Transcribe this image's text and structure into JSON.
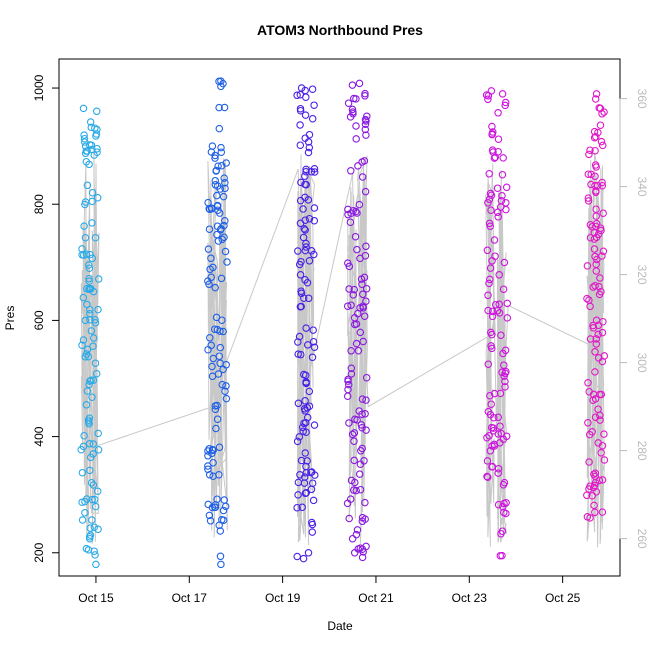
{
  "chart_data": {
    "type": "scatter",
    "title": "ATOM3 Northbound Pres",
    "xlabel": "Date",
    "ylabel": "Pres",
    "x_ticks": [
      "Oct 15",
      "Oct 17",
      "Oct 19",
      "Oct 21",
      "Oct 23",
      "Oct 25"
    ],
    "y_ticks": [
      "200",
      "400",
      "600",
      "800",
      "1000"
    ],
    "y2_ticks": [
      "260",
      "280",
      "300",
      "320",
      "340",
      "360"
    ],
    "xlim": [
      "2011-10-14 05:00",
      "2011-10-26 05:30"
    ],
    "ylim": [
      160,
      1050
    ],
    "y2lim": [
      251.5,
      369
    ],
    "grid": false,
    "line_color": "#c8c8c8",
    "y2_color": "#bbbbbb",
    "point_style": "open-circle",
    "series": [
      {
        "color": "#2aaae8",
        "casts": [
          {
            "time": "2011-10-14 19:00",
            "range": [
              205,
              965
            ]
          },
          {
            "time": "2011-10-14 23:00",
            "range": [
              180,
              960
            ]
          }
        ]
      },
      {
        "color": "#1f60e6",
        "casts": [
          {
            "time": "2011-10-17 12:00",
            "range": [
              255,
              900
            ]
          },
          {
            "time": "2011-10-17 17:00",
            "range": [
              180,
              1012
            ]
          }
        ]
      },
      {
        "color": "#4a20e8",
        "casts": [
          {
            "time": "2011-10-19 10:00",
            "range": [
              190,
              1000
            ]
          },
          {
            "time": "2011-10-19 14:00",
            "range": [
              200,
              998
            ]
          }
        ]
      },
      {
        "color": "#8a18e0",
        "casts": [
          {
            "time": "2011-10-20 12:00",
            "range": [
              200,
              1005
            ]
          },
          {
            "time": "2011-10-20 17:00",
            "range": [
              192,
              1008
            ]
          }
        ]
      },
      {
        "color": "#cc14dc",
        "casts": [
          {
            "time": "2011-10-23 11:00",
            "range": [
              330,
              995
            ]
          },
          {
            "time": "2011-10-23 17:00",
            "range": [
              195,
              990
            ]
          }
        ]
      },
      {
        "color": "#e018c8",
        "casts": [
          {
            "time": "2011-10-25 15:00",
            "range": [
              260,
              925
            ]
          },
          {
            "time": "2011-10-25 19:00",
            "range": [
              270,
              990
            ]
          }
        ]
      }
    ],
    "secondary_series": {
      "name": "",
      "points": [
        [
          "2011-10-14 18:00",
          330
        ],
        [
          "2011-10-14 20:00",
          262
        ],
        [
          "2011-10-14 22:00",
          320
        ],
        [
          "2011-10-15 00:00",
          281
        ],
        [
          "2011-10-17 12:00",
          290
        ],
        [
          "2011-10-17 13:30",
          318
        ],
        [
          "2011-10-17 15:00",
          305
        ],
        [
          "2011-10-17 16:30",
          325
        ],
        [
          "2011-10-17 18:00",
          298
        ],
        [
          "2011-10-17 19:00",
          300
        ],
        [
          "2011-10-19 08:00",
          344
        ],
        [
          "2011-10-19 10:00",
          305
        ],
        [
          "2011-10-19 12:00",
          340
        ],
        [
          "2011-10-19 14:00",
          310
        ],
        [
          "2011-10-19 16:00",
          302
        ],
        [
          "2011-10-20 12:00",
          343
        ],
        [
          "2011-10-20 14:00",
          285
        ],
        [
          "2011-10-20 16:00",
          335
        ],
        [
          "2011-10-20 18:00",
          310
        ],
        [
          "2011-10-20 20:00",
          290
        ],
        [
          "2011-10-23 10:00",
          306
        ],
        [
          "2011-10-23 12:00",
          328
        ],
        [
          "2011-10-23 14:00",
          285
        ],
        [
          "2011-10-23 16:00",
          325
        ],
        [
          "2011-10-23 18:00",
          296
        ],
        [
          "2011-10-23 20:00",
          313
        ],
        [
          "2011-10-25 14:00",
          304
        ],
        [
          "2011-10-25 16:00",
          330
        ],
        [
          "2011-10-25 18:00",
          258
        ],
        [
          "2011-10-25 20:00",
          320
        ],
        [
          "2011-10-25 21:00",
          290
        ]
      ]
    }
  }
}
